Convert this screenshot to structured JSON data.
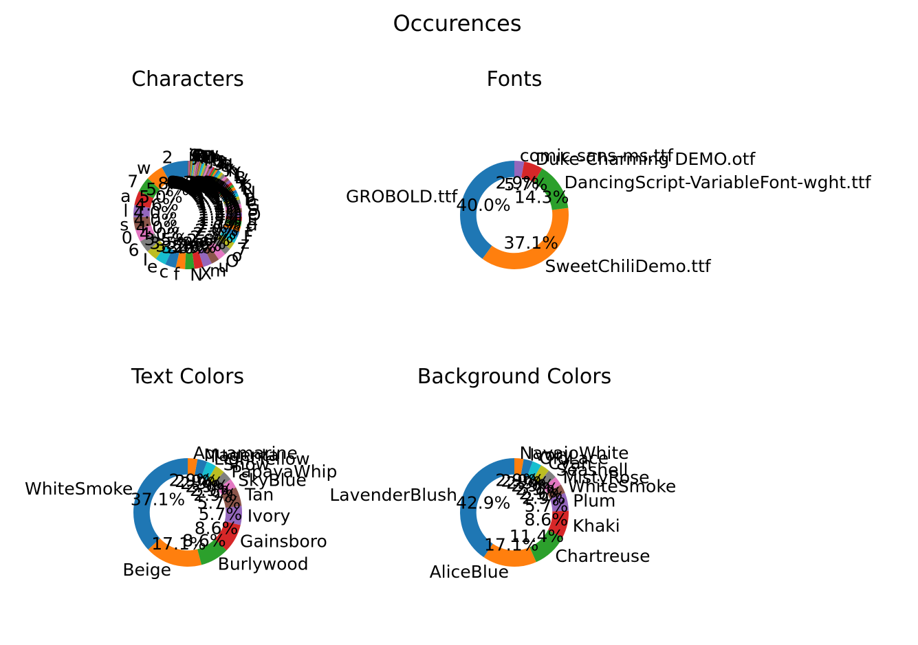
{
  "figure": {
    "title": "Occurences"
  },
  "chart_data": [
    {
      "type": "pie",
      "title": "Characters",
      "categories": [
        "2",
        "w",
        "7",
        "a",
        "l",
        "s",
        "0",
        "6",
        "I",
        "e",
        "c",
        "f",
        "N",
        "X",
        "m",
        "u",
        "O",
        "o",
        "7",
        "z",
        "F",
        "t",
        "d",
        "E",
        "O",
        "S",
        "G",
        "b",
        "p",
        "U",
        "R",
        "K",
        "x",
        "V",
        "B",
        "1",
        "Y",
        "h",
        "k",
        "y",
        "3",
        "H",
        "4",
        "8",
        "5",
        "g",
        "9",
        "j",
        "i",
        "n",
        "D",
        "L",
        "W",
        "M",
        "T",
        "v",
        "q",
        "r",
        "P",
        "A",
        "J",
        "Q",
        "C",
        "Z",
        "9",
        "i"
      ],
      "values": [
        8.6,
        5.7,
        5.0,
        4.6,
        4.0,
        4.0,
        4.0,
        4.0,
        3.5,
        3.5,
        3.5,
        3.0,
        3.0,
        2.9,
        2.9,
        2.6,
        2.6,
        2.3,
        2.3,
        2.0,
        2.0,
        1.7,
        1.7,
        1.4,
        1.4,
        1.4,
        1.4,
        1.4,
        1.1,
        1.1,
        1.1,
        1.1,
        0.9,
        0.9,
        0.9,
        0.9,
        0.9,
        0.9,
        0.9,
        0.6,
        0.6,
        0.6,
        0.6,
        0.6,
        0.6,
        0.6,
        0.6,
        0.6,
        0.6,
        0.6,
        0.3,
        0.3,
        0.3,
        0.3,
        0.3,
        0.3,
        0.3,
        0.3,
        0.3,
        0.3,
        0.3,
        0.3,
        0.3,
        0.3,
        0.3,
        0.3
      ],
      "percent_labels": [
        "8.6%",
        "5.7%",
        "5.0%",
        "4.6%",
        "4.0%",
        "4.0%",
        "4.0%",
        "4.0%",
        "3.5%",
        "3.5%",
        "3.5%",
        "3.0%",
        "3.0%",
        "2.9%",
        "2.9%",
        "2.6%",
        "2.6%",
        "2.3%",
        "2.3%",
        "2.0%",
        "2.0%",
        "1.7%",
        "1.7%",
        "1.4%",
        "1.4%",
        "1.4%",
        "1.4%",
        "1.4%",
        "1.1%",
        "1.1%",
        "1.1%",
        "1.1%",
        "0.9%",
        "0.9%",
        "0.9%",
        "0.9%",
        "0.9%",
        "0.9%",
        "0.9%",
        "0.6%",
        "0.6%",
        "0.6%",
        "0.6%",
        "0.6%",
        "0.6%",
        "0.6%",
        "0.6%",
        "0.6%",
        "0.6%",
        "0.6%",
        "0.3%",
        "0.3%",
        "0.3%",
        "0.3%",
        "0.3%",
        "0.3%",
        "0.3%",
        "0.3%",
        "0.3%",
        "0.3%",
        "0.3%",
        "0.3%",
        "0.3%",
        "0.3%",
        "0.3%",
        "0.3%"
      ]
    },
    {
      "type": "pie",
      "title": "Fonts",
      "categories": [
        "GROBOLD.ttf",
        "SweetChiliDemo.ttf",
        "DancingScript-VariableFont-wght.ttf",
        "Duke-Charming DEMO.otf",
        "comic-sans-ms.ttf"
      ],
      "values": [
        40.0,
        37.1,
        14.3,
        5.7,
        2.9
      ],
      "percent_labels": [
        "40.0%",
        "37.1%",
        "14.3%",
        "5.7%",
        "2.9%"
      ]
    },
    {
      "type": "pie",
      "title": "Text Colors",
      "categories": [
        "WhiteSmoke",
        "Beige",
        "Burlywood",
        "Gainsboro",
        "Ivory",
        "Tan",
        "SkyBlue",
        "PapayaWhip",
        "Snow",
        "LightYellow",
        "Magenta",
        "Aquamarine"
      ],
      "values": [
        37.1,
        17.1,
        8.6,
        8.6,
        5.7,
        5.7,
        2.9,
        2.9,
        2.9,
        2.9,
        2.9,
        2.9
      ],
      "percent_labels": [
        "37.1%",
        "17.1%",
        "8.6%",
        "8.6%",
        "5.7%",
        "5.7%",
        "2.9%",
        "2.9%",
        "2.9%",
        "2.9%",
        "2.9%",
        "2.9%"
      ]
    },
    {
      "type": "pie",
      "title": "Background Colors",
      "categories": [
        "LavenderBlush",
        "AliceBlue",
        "Chartreuse",
        "Khaki",
        "Plum",
        "WhiteSmoke",
        "MistyRose",
        "Seashell",
        "Cyan",
        "OldLace",
        "Ivory",
        "NavajoWhite"
      ],
      "values": [
        42.9,
        17.1,
        11.4,
        8.6,
        5.7,
        2.9,
        2.9,
        2.9,
        2.9,
        2.9,
        2.9,
        2.9
      ],
      "percent_labels": [
        "42.9%",
        "17.1%",
        "11.4%",
        "8.6%",
        "5.7%",
        "2.9%",
        "2.9%",
        "2.9%",
        "2.9%",
        "2.9%",
        "2.9%",
        "2.9%"
      ]
    }
  ],
  "palette": [
    "#1f77b4",
    "#ff7f0e",
    "#2ca02c",
    "#d62728",
    "#9467bd",
    "#8c564b",
    "#e377c2",
    "#7f7f7f",
    "#bcbd22",
    "#17becf"
  ]
}
